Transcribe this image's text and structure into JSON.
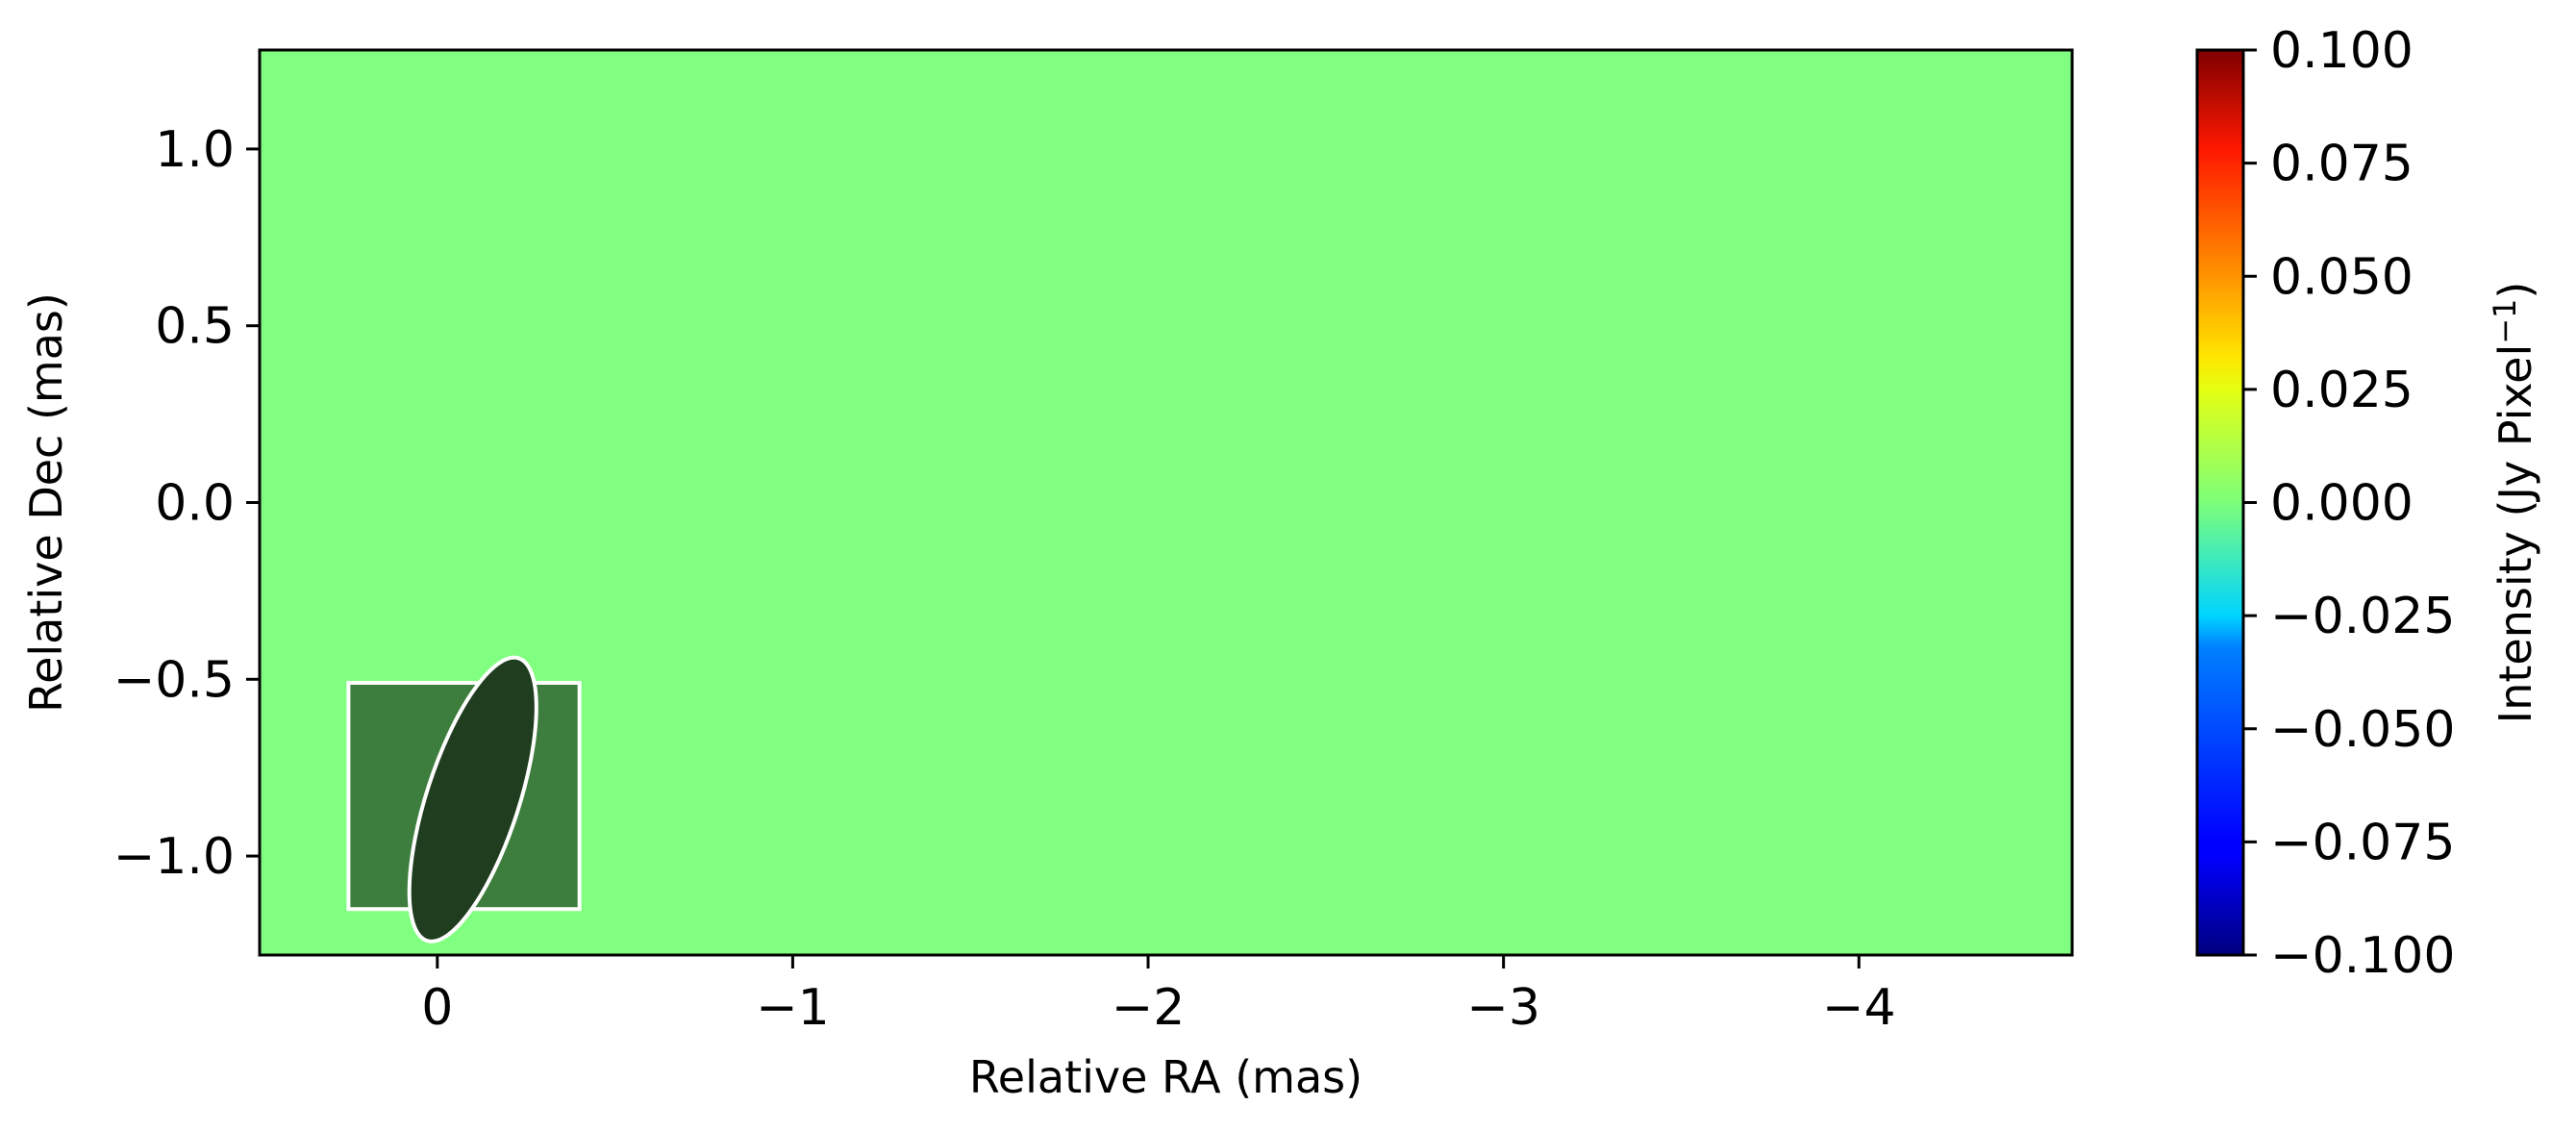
{
  "chart_data": {
    "type": "heatmap",
    "title": "",
    "xlabel": "Relative RA (mas)",
    "ylabel": "Relative Dec (mas)",
    "xlim": [
      0.5,
      -4.6
    ],
    "ylim": [
      -1.28,
      1.28
    ],
    "x_ticks": [
      {
        "value": 0,
        "label": "0"
      },
      {
        "value": -1,
        "label": "−1"
      },
      {
        "value": -2,
        "label": "−2"
      },
      {
        "value": -3,
        "label": "−3"
      },
      {
        "value": -4,
        "label": "−4"
      }
    ],
    "y_ticks": [
      {
        "value": 1.0,
        "label": "1.0"
      },
      {
        "value": 0.5,
        "label": "0.5"
      },
      {
        "value": 0.0,
        "label": "0.0"
      },
      {
        "value": -0.5,
        "label": "−0.5"
      },
      {
        "value": -1.0,
        "label": "−1.0"
      }
    ],
    "image_value": 0.0,
    "image_color": "#80ff80",
    "grid": false,
    "beam": {
      "center_ra": -0.1,
      "center_dec": -0.84,
      "major_mas": 0.42,
      "minor_mas": 0.13,
      "position_angle_deg": 18,
      "box_ra": [
        0.25,
        -0.4
      ],
      "box_dec": [
        -1.15,
        -0.51
      ],
      "box_color": "#3d7d3d",
      "ellipse_fill": "#203d20",
      "outline_color": "#ffffff"
    },
    "colorbar": {
      "label": "Intensity (Jy Pixel",
      "label_superscript": "−1",
      "label_close": ")",
      "colormap": "jet",
      "range": [
        -0.1,
        0.1
      ],
      "ticks": [
        {
          "value": 0.1,
          "label": "0.100"
        },
        {
          "value": 0.075,
          "label": "0.075"
        },
        {
          "value": 0.05,
          "label": "0.050"
        },
        {
          "value": 0.025,
          "label": "0.025"
        },
        {
          "value": 0.0,
          "label": "0.000"
        },
        {
          "value": -0.025,
          "label": "−0.025"
        },
        {
          "value": -0.05,
          "label": "−0.050"
        },
        {
          "value": -0.075,
          "label": "−0.075"
        },
        {
          "value": -0.1,
          "label": "−0.100"
        }
      ]
    }
  }
}
